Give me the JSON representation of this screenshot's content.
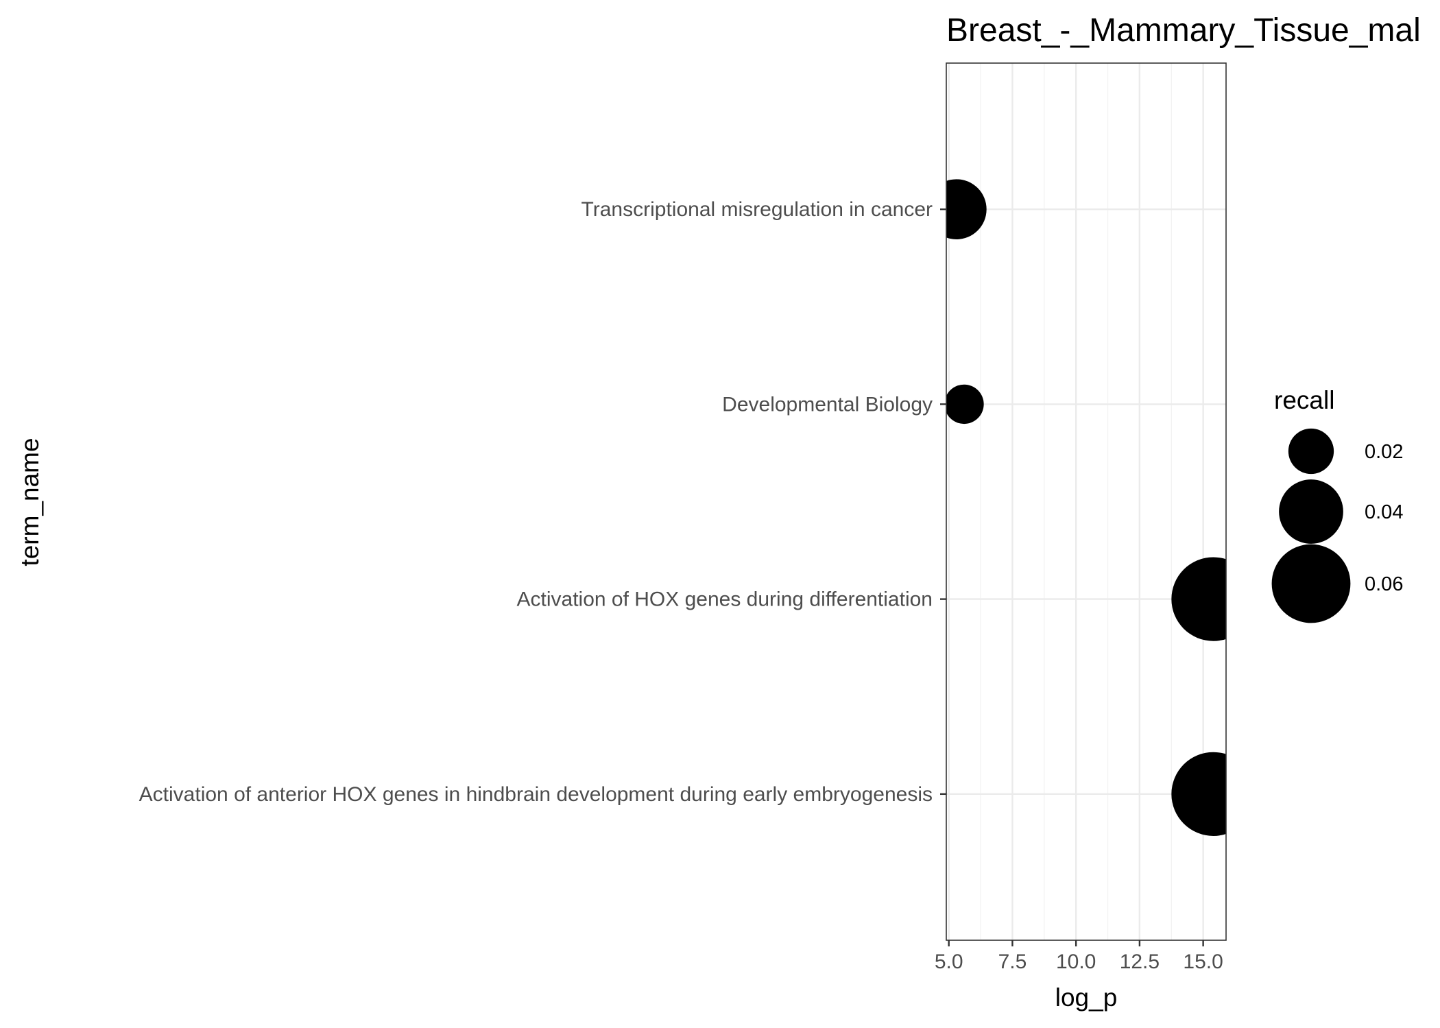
{
  "chart_data": {
    "type": "scatter",
    "title": "Breast_-_Mammary_Tissue_mal",
    "xlabel": "log_p",
    "ylabel": "term_name",
    "xlim": [
      4.9,
      15.9
    ],
    "x_ticks": [
      5.0,
      7.5,
      10.0,
      12.5,
      15.0
    ],
    "x_tick_labels": [
      "5.0",
      "7.5",
      "10.0",
      "12.5",
      "15.0"
    ],
    "categories": [
      "Transcriptional misregulation in cancer",
      "Developmental Biology",
      "Activation of HOX genes during differentiation",
      "Activation of anterior HOX genes in hindbrain development during early embryogenesis"
    ],
    "points": [
      {
        "term_name": "Transcriptional misregulation in cancer",
        "log_p": 5.3,
        "recall": 0.035
      },
      {
        "term_name": "Developmental Biology",
        "log_p": 5.6,
        "recall": 0.015
      },
      {
        "term_name": "Activation of HOX genes during differentiation",
        "log_p": 15.4,
        "recall": 0.068
      },
      {
        "term_name": "Activation of anterior HOX genes in hindbrain development during early embryogenesis",
        "log_p": 15.4,
        "recall": 0.068
      }
    ],
    "size_legend": {
      "title": "recall",
      "entries": [
        {
          "value": 0.02,
          "label": "0.02"
        },
        {
          "value": 0.04,
          "label": "0.04"
        },
        {
          "value": 0.06,
          "label": "0.06"
        }
      ]
    },
    "point_color": "#000000",
    "grid": true,
    "legend_position": "right"
  }
}
